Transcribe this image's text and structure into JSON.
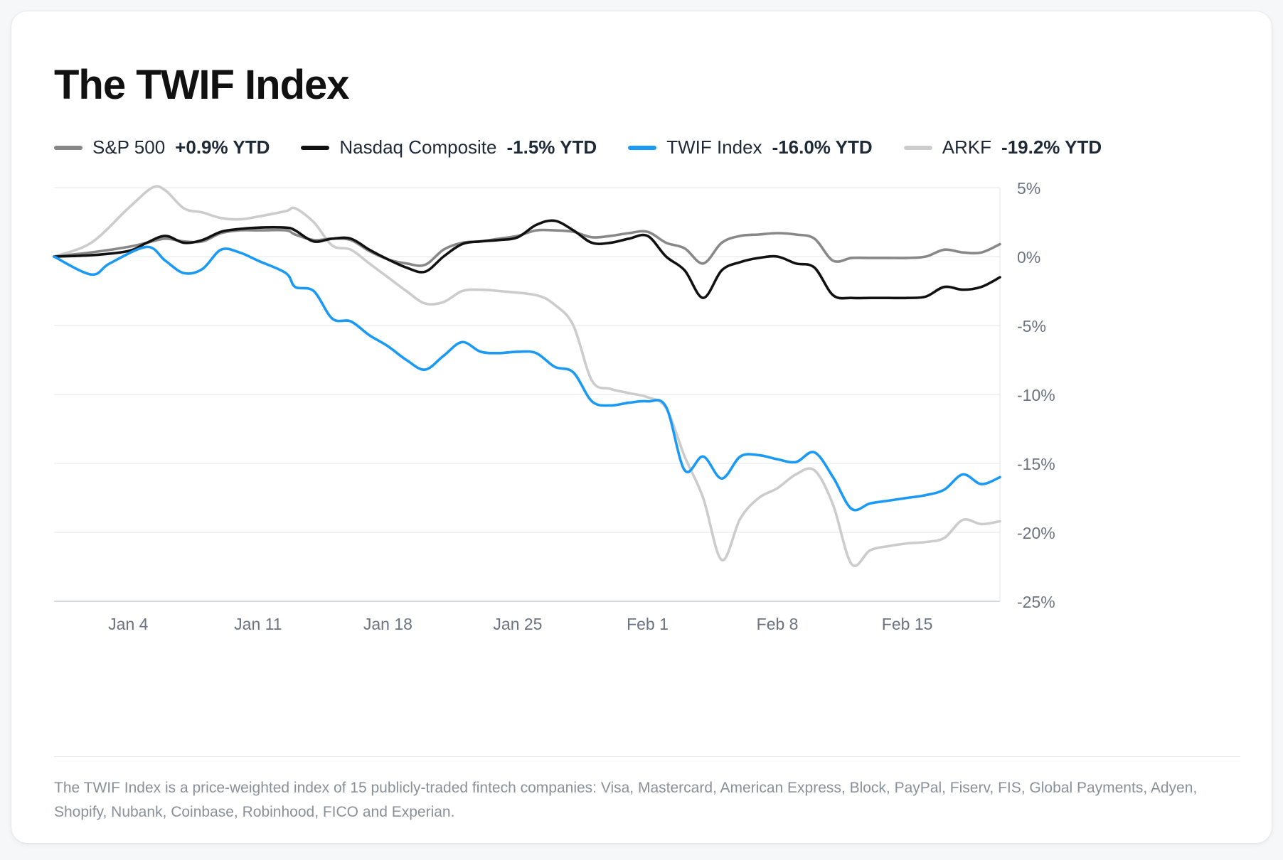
{
  "title": "The TWIF Index",
  "legend": [
    {
      "name": "S&P 500",
      "ytd": "+0.9% YTD",
      "color": "#888888"
    },
    {
      "name": "Nasdaq Composite",
      "ytd": "-1.5% YTD",
      "color": "#111111"
    },
    {
      "name": "TWIF Index",
      "ytd": "-16.0% YTD",
      "color": "#1a9af5"
    },
    {
      "name": "ARKF",
      "ytd": "-19.2% YTD",
      "color": "#cccccc"
    }
  ],
  "footnote": "The TWIF Index is a price-weighted index of 15 publicly-traded fintech companies: Visa, Mastercard, American Express, Block, PayPal, Fiserv, FIS, Global Payments, Adyen, Shopify, Nubank, Coinbase, Robinhood, FICO and Experian.",
  "chart_data": {
    "type": "line",
    "title": "The TWIF Index",
    "xlabel": "",
    "ylabel": "",
    "x_range": [
      0,
      51
    ],
    "ylim": [
      -25,
      5
    ],
    "y_ticks": [
      5,
      0,
      -5,
      -10,
      -15,
      -20,
      -25
    ],
    "y_tick_labels": [
      "5%",
      "0%",
      "-5%",
      "-10%",
      "-15%",
      "-20%",
      "-25%"
    ],
    "x_ticks": [
      4,
      11,
      18,
      25,
      32,
      39,
      46
    ],
    "x_tick_labels": [
      "Jan 4",
      "Jan 11",
      "Jan 18",
      "Jan 25",
      "Feb 1",
      "Feb 8",
      "Feb 15"
    ],
    "grid": true,
    "series": [
      {
        "name": "ARKF",
        "color": "#cccccc",
        "points": [
          [
            0,
            0
          ],
          [
            2,
            1
          ],
          [
            4,
            3.5
          ],
          [
            5.3,
            5
          ],
          [
            6,
            4.8
          ],
          [
            7,
            3.5
          ],
          [
            8,
            3.2
          ],
          [
            9,
            2.8
          ],
          [
            10,
            2.7
          ],
          [
            11,
            2.9
          ],
          [
            12.5,
            3.3
          ],
          [
            13,
            3.5
          ],
          [
            14,
            2.5
          ],
          [
            15,
            0.8
          ],
          [
            16,
            0.5
          ],
          [
            17,
            -0.5
          ],
          [
            18,
            -1.5
          ],
          [
            19,
            -2.5
          ],
          [
            20,
            -3.4
          ],
          [
            21,
            -3.3
          ],
          [
            22,
            -2.5
          ],
          [
            23,
            -2.4
          ],
          [
            24,
            -2.5
          ],
          [
            26,
            -2.8
          ],
          [
            27,
            -3.5
          ],
          [
            28,
            -5
          ],
          [
            29,
            -9
          ],
          [
            30,
            -9.6
          ],
          [
            31,
            -9.9
          ],
          [
            32,
            -10.2
          ],
          [
            33,
            -11
          ],
          [
            34,
            -14.5
          ],
          [
            35,
            -17.5
          ],
          [
            36,
            -22
          ],
          [
            37,
            -19
          ],
          [
            38,
            -17.5
          ],
          [
            39,
            -16.8
          ],
          [
            40,
            -15.8
          ],
          [
            41,
            -15.5
          ],
          [
            42,
            -18
          ],
          [
            43,
            -22.3
          ],
          [
            44,
            -21.3
          ],
          [
            45,
            -21
          ],
          [
            46,
            -20.8
          ],
          [
            47,
            -20.7
          ],
          [
            48,
            -20.4
          ],
          [
            49,
            -19.1
          ],
          [
            50,
            -19.4
          ],
          [
            51,
            -19.2
          ]
        ]
      },
      {
        "name": "S&P 500",
        "color": "#888888",
        "points": [
          [
            0,
            0
          ],
          [
            2,
            0.3
          ],
          [
            4,
            0.7
          ],
          [
            5,
            1
          ],
          [
            6,
            1.3
          ],
          [
            7,
            1.1
          ],
          [
            8,
            1.1
          ],
          [
            9,
            1.7
          ],
          [
            10,
            1.9
          ],
          [
            11,
            1.9
          ],
          [
            12.5,
            1.9
          ],
          [
            13,
            1.6
          ],
          [
            14,
            1.2
          ],
          [
            15,
            1.3
          ],
          [
            16,
            1.2
          ],
          [
            17,
            0.4
          ],
          [
            18,
            -0.2
          ],
          [
            19,
            -0.5
          ],
          [
            20,
            -0.6
          ],
          [
            21,
            0.5
          ],
          [
            22,
            1
          ],
          [
            23,
            1.1
          ],
          [
            24,
            1.3
          ],
          [
            25,
            1.5
          ],
          [
            26,
            1.9
          ],
          [
            27,
            1.9
          ],
          [
            28,
            1.8
          ],
          [
            29,
            1.4
          ],
          [
            30,
            1.5
          ],
          [
            31,
            1.7
          ],
          [
            32,
            1.8
          ],
          [
            33,
            1
          ],
          [
            34,
            0.6
          ],
          [
            35,
            -0.5
          ],
          [
            36,
            1
          ],
          [
            37,
            1.5
          ],
          [
            38,
            1.6
          ],
          [
            39,
            1.7
          ],
          [
            40,
            1.6
          ],
          [
            41,
            1.3
          ],
          [
            42,
            -0.3
          ],
          [
            43,
            -0.1
          ],
          [
            44,
            -0.1
          ],
          [
            45,
            -0.1
          ],
          [
            46,
            -0.1
          ],
          [
            47,
            0
          ],
          [
            48,
            0.5
          ],
          [
            49,
            0.3
          ],
          [
            50,
            0.3
          ],
          [
            51,
            0.9
          ]
        ]
      },
      {
        "name": "Nasdaq Composite",
        "color": "#111111",
        "points": [
          [
            0,
            0
          ],
          [
            2,
            0.1
          ],
          [
            4,
            0.4
          ],
          [
            5,
            1
          ],
          [
            6,
            1.5
          ],
          [
            7,
            1
          ],
          [
            8,
            1.2
          ],
          [
            9,
            1.8
          ],
          [
            10,
            2
          ],
          [
            11,
            2.1
          ],
          [
            12.5,
            2.1
          ],
          [
            13,
            1.9
          ],
          [
            14,
            1.1
          ],
          [
            15,
            1.3
          ],
          [
            16,
            1.3
          ],
          [
            17,
            0.5
          ],
          [
            18,
            -0.2
          ],
          [
            19,
            -0.8
          ],
          [
            20,
            -1.1
          ],
          [
            21,
            0
          ],
          [
            22,
            0.9
          ],
          [
            23,
            1.1
          ],
          [
            24,
            1.2
          ],
          [
            25,
            1.4
          ],
          [
            26,
            2.3
          ],
          [
            27,
            2.6
          ],
          [
            28,
            1.9
          ],
          [
            29,
            1
          ],
          [
            30,
            1
          ],
          [
            31,
            1.3
          ],
          [
            32,
            1.5
          ],
          [
            33,
            0
          ],
          [
            34,
            -1
          ],
          [
            35,
            -3
          ],
          [
            36,
            -1
          ],
          [
            37,
            -0.4
          ],
          [
            38,
            -0.1
          ],
          [
            39,
            0
          ],
          [
            40,
            -0.5
          ],
          [
            41,
            -0.8
          ],
          [
            42,
            -2.8
          ],
          [
            43,
            -3
          ],
          [
            44,
            -3
          ],
          [
            45,
            -3
          ],
          [
            46,
            -3
          ],
          [
            47,
            -2.9
          ],
          [
            48,
            -2.2
          ],
          [
            49,
            -2.4
          ],
          [
            50,
            -2.2
          ],
          [
            51,
            -1.5
          ]
        ]
      },
      {
        "name": "TWIF Index",
        "color": "#1a9af5",
        "points": [
          [
            0,
            0
          ],
          [
            2,
            -1.3
          ],
          [
            3,
            -0.5
          ],
          [
            5,
            0.7
          ],
          [
            6,
            -0.3
          ],
          [
            7,
            -1.2
          ],
          [
            8,
            -0.9
          ],
          [
            9,
            0.5
          ],
          [
            10,
            0.3
          ],
          [
            11,
            -0.3
          ],
          [
            12.5,
            -1.2
          ],
          [
            13,
            -2.2
          ],
          [
            14,
            -2.5
          ],
          [
            15,
            -4.5
          ],
          [
            16,
            -4.7
          ],
          [
            17,
            -5.7
          ],
          [
            18,
            -6.5
          ],
          [
            19,
            -7.5
          ],
          [
            20,
            -8.2
          ],
          [
            21,
            -7.2
          ],
          [
            22,
            -6.2
          ],
          [
            23,
            -6.9
          ],
          [
            24,
            -7
          ],
          [
            25,
            -6.9
          ],
          [
            26,
            -7
          ],
          [
            27,
            -8
          ],
          [
            28,
            -8.4
          ],
          [
            29,
            -10.5
          ],
          [
            30,
            -10.8
          ],
          [
            31,
            -10.6
          ],
          [
            32,
            -10.5
          ],
          [
            33,
            -10.9
          ],
          [
            34,
            -15.5
          ],
          [
            35,
            -14.5
          ],
          [
            36,
            -16.1
          ],
          [
            37,
            -14.5
          ],
          [
            38,
            -14.4
          ],
          [
            39,
            -14.7
          ],
          [
            40,
            -14.9
          ],
          [
            41,
            -14.2
          ],
          [
            42,
            -16
          ],
          [
            43,
            -18.3
          ],
          [
            44,
            -17.9
          ],
          [
            45,
            -17.7
          ],
          [
            46,
            -17.5
          ],
          [
            47,
            -17.3
          ],
          [
            48,
            -16.9
          ],
          [
            49,
            -15.8
          ],
          [
            50,
            -16.5
          ],
          [
            51,
            -16
          ]
        ]
      }
    ]
  }
}
